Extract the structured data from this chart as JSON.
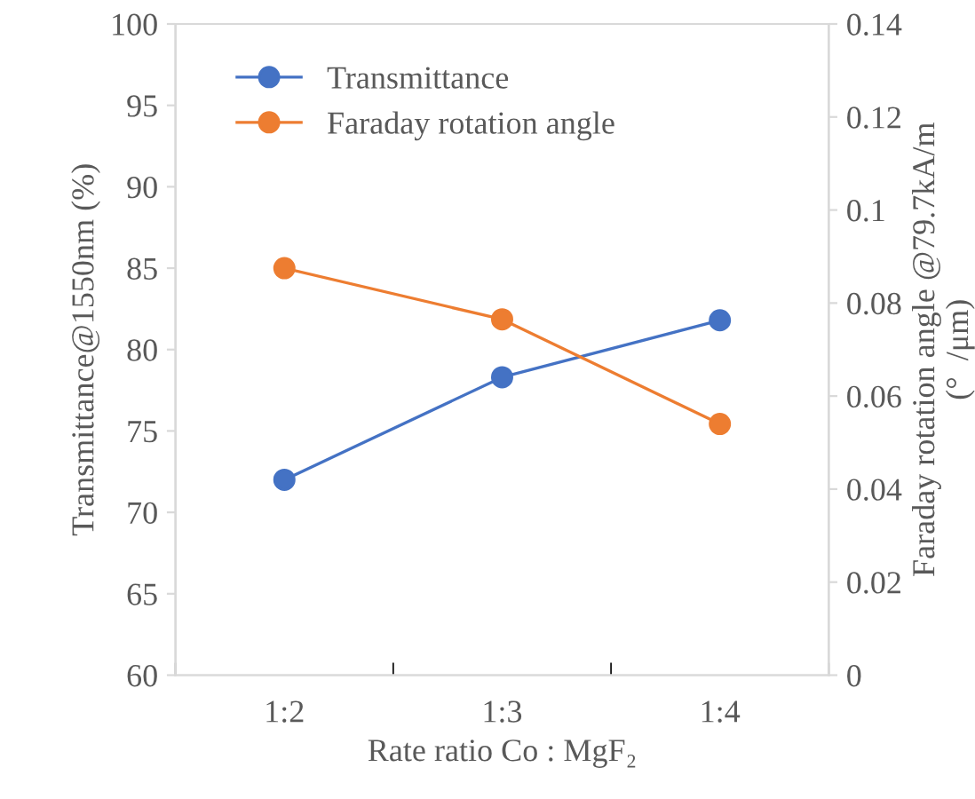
{
  "chart_data": {
    "type": "line",
    "xlabel": "Rate ratio Co : MgF₂",
    "ylabel": "Transmittance@1550nm (%)",
    "y2label": "Faraday rotation angle @79.7kA/m\n(°  /μm)",
    "categories": [
      "1:2",
      "1:3",
      "1:4"
    ],
    "series": [
      {
        "name": "Transmittance",
        "color": "#4472c4",
        "values": [
          72.0,
          78.3,
          81.8
        ]
      },
      {
        "name": "Faraday rotation angle",
        "color": "#ed7d31",
        "axis": "y2",
        "values": [
          0.0875,
          0.0765,
          0.054
        ]
      }
    ],
    "ylim": [
      60,
      100
    ],
    "yticks": [
      60,
      65,
      70,
      75,
      80,
      85,
      90,
      95,
      100
    ],
    "y2lim": [
      0,
      0.14
    ],
    "y2ticks": [
      0,
      0.02,
      0.04,
      0.06,
      0.08,
      0.1,
      0.12,
      0.14
    ],
    "marker": "circle",
    "line_style": "solid",
    "grid": false,
    "legend": "top left"
  }
}
